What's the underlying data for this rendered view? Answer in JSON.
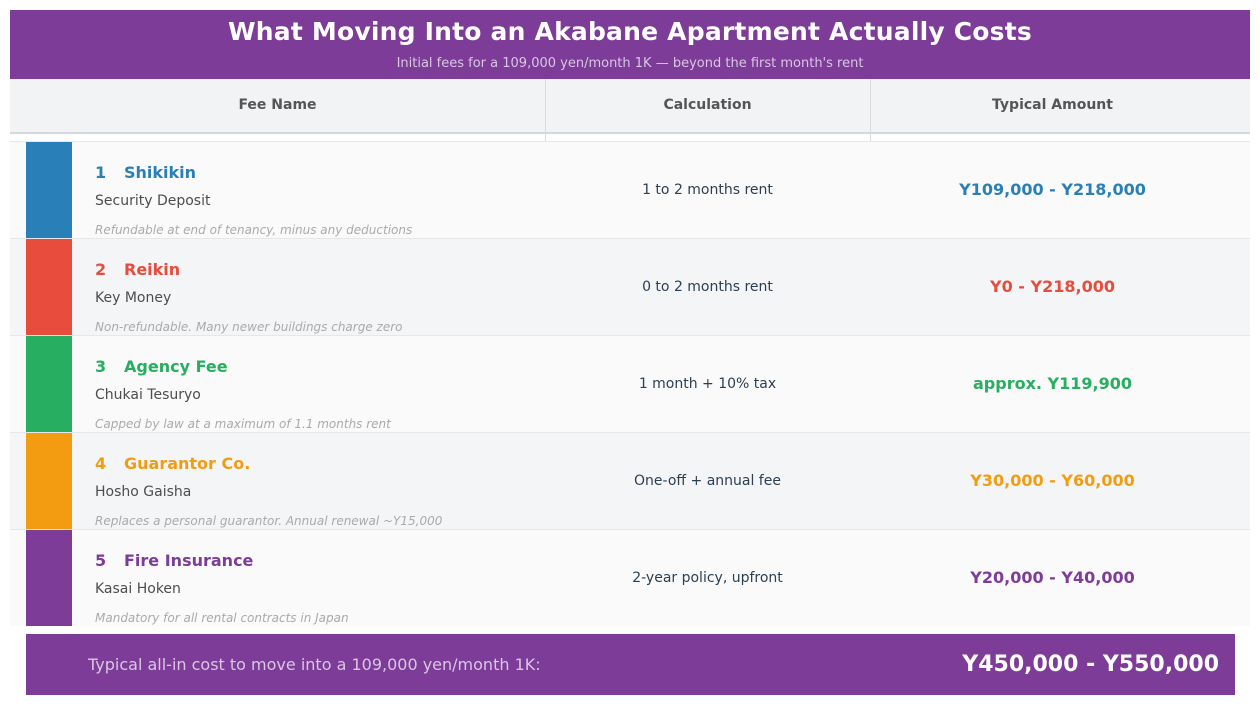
{
  "header": {
    "title": "What Moving Into an Akabane Apartment Actually Costs",
    "subtitle": "Initial fees for a 109,000 yen/month 1K  —  beyond the first month's rent"
  },
  "columns": {
    "fee_name": "Fee Name",
    "calculation": "Calculation",
    "typical_amount": "Typical Amount"
  },
  "fees": [
    {
      "number": "1",
      "name": "Shikikin",
      "romaji": "Security Deposit",
      "note": "Refundable at end of tenancy, minus any deductions",
      "calculation": "1 to 2 months rent",
      "amount": "Y109,000  -  Y218,000",
      "color": "#2980b9"
    },
    {
      "number": "2",
      "name": "Reikin",
      "romaji": "Key Money",
      "note": "Non-refundable. Many newer buildings charge zero",
      "calculation": "0 to 2 months rent",
      "amount": "Y0  -  Y218,000",
      "color": "#e74c3c"
    },
    {
      "number": "3",
      "name": "Agency Fee",
      "romaji": "Chukai Tesuryo",
      "note": "Capped by law at a maximum of 1.1 months rent",
      "calculation": "1 month + 10% tax",
      "amount": "approx. Y119,900",
      "color": "#27ae60"
    },
    {
      "number": "4",
      "name": "Guarantor Co.",
      "romaji": "Hosho Gaisha",
      "note": "Replaces a personal guarantor. Annual renewal ~Y15,000",
      "calculation": "One-off + annual fee",
      "amount": "Y30,000  -  Y60,000",
      "color": "#f39c12"
    },
    {
      "number": "5",
      "name": "Fire Insurance",
      "romaji": "Kasai Hoken",
      "note": "Mandatory for all rental contracts in Japan",
      "calculation": "2-year policy, upfront",
      "amount": "Y20,000  -  Y40,000",
      "color": "#7d3c98"
    }
  ],
  "footer": {
    "label": "Typical all-in cost to move into a 109,000 yen/month 1K:",
    "total": "Y450,000  -  Y550,000"
  },
  "colors": {
    "brand": "#7d3c98",
    "header_row_bg": "#f2f3f4"
  }
}
